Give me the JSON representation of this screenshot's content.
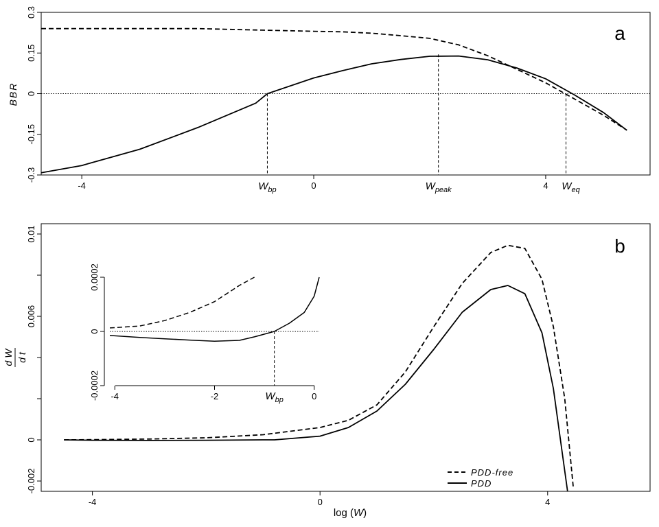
{
  "chart_data": [
    {
      "type": "line",
      "panel_label": "a",
      "ylabel": "BBR",
      "xlabel": "",
      "xlim": [
        -4.7,
        5.8
      ],
      "ylim": [
        -0.3,
        0.3
      ],
      "xticks": [
        -4,
        0,
        4
      ],
      "yticks": [
        -0.3,
        -0.15,
        0,
        0.15,
        0.3
      ],
      "xtick_labels": [
        "-4",
        "0",
        "4"
      ],
      "ytick_labels": [
        "-0.3",
        "-0.15",
        "0",
        "0.15",
        "0.3"
      ],
      "reference_line": {
        "y": 0,
        "style": "dotted"
      },
      "markers": [
        {
          "label": "W",
          "sub": "bp",
          "x": -0.8,
          "y": 0.0
        },
        {
          "label": "W",
          "sub": "peak",
          "x": 2.15,
          "y": 0.145
        },
        {
          "label": "W",
          "sub": "eq",
          "x": 4.35,
          "y": 0.0
        }
      ],
      "series": [
        {
          "style": "dashed",
          "x": [
            -4.7,
            -4,
            -3,
            -2,
            -1,
            0,
            0.5,
            1,
            1.5,
            2,
            2.5,
            3,
            3.5,
            4,
            4.5,
            5,
            5.4
          ],
          "y": [
            0.24,
            0.24,
            0.24,
            0.24,
            0.235,
            0.23,
            0.228,
            0.223,
            0.214,
            0.204,
            0.18,
            0.14,
            0.09,
            0.04,
            -0.02,
            -0.08,
            -0.135
          ]
        },
        {
          "style": "solid",
          "x": [
            -4.7,
            -4,
            -3,
            -2,
            -1,
            -0.8,
            0,
            0.5,
            1,
            1.5,
            2,
            2.5,
            3,
            3.5,
            4,
            4.5,
            5,
            5.4
          ],
          "y": [
            -0.292,
            -0.265,
            -0.205,
            -0.125,
            -0.035,
            0.0,
            0.058,
            0.085,
            0.11,
            0.126,
            0.138,
            0.139,
            0.125,
            0.095,
            0.055,
            -0.005,
            -0.07,
            -0.135
          ]
        }
      ]
    },
    {
      "type": "line",
      "panel_label": "b",
      "ylabel": "dW/dt",
      "xlabel": "log (W)",
      "xlim": [
        -4.9,
        5.8
      ],
      "ylim": [
        -0.0025,
        0.0105
      ],
      "xticks": [
        -4,
        0,
        4
      ],
      "yticks": [
        -0.002,
        0,
        0.002,
        0.004,
        0.006,
        0.008,
        0.01
      ],
      "xtick_labels": [
        "-4",
        "0",
        "4"
      ],
      "ytick_labels": [
        "-0.002",
        "0",
        "",
        "",
        "0.006",
        "",
        "0.01"
      ],
      "legend": {
        "position": "bottom-right",
        "entries": [
          {
            "label": "PDD-free",
            "style": "dashed"
          },
          {
            "label": "PDD",
            "style": "solid"
          }
        ]
      },
      "series": [
        {
          "name": "PDD-free",
          "style": "dashed",
          "x": [
            -4.5,
            -4,
            -3,
            -2,
            -1,
            0,
            0.5,
            1,
            1.5,
            2,
            2.5,
            3,
            3.3,
            3.6,
            3.9,
            4.1,
            4.3,
            4.45
          ],
          "y": [
            0.0,
            1e-05,
            4e-05,
            0.0001,
            0.00025,
            0.0006,
            0.00095,
            0.0017,
            0.0033,
            0.0055,
            0.0076,
            0.0091,
            0.00945,
            0.0093,
            0.0078,
            0.0055,
            0.002,
            -0.0023
          ]
        },
        {
          "name": "PDD",
          "style": "solid",
          "x": [
            -4.5,
            -4,
            -3,
            -2,
            -1,
            -0.8,
            0,
            0.5,
            1,
            1.5,
            2,
            2.5,
            3,
            3.3,
            3.6,
            3.9,
            4.1,
            4.25,
            4.35
          ],
          "y": [
            0.0,
            -2e-05,
            -3e-05,
            -2e-05,
            0.0,
            0.0,
            0.00018,
            0.0006,
            0.0014,
            0.0027,
            0.0044,
            0.0062,
            0.0073,
            0.0075,
            0.0071,
            0.0052,
            0.0025,
            -0.0005,
            -0.0025
          ]
        }
      ]
    },
    {
      "type": "line",
      "panel_label": "",
      "inset_of": "b",
      "xlim": [
        -4.1,
        0.1
      ],
      "ylim": [
        -0.0002,
        0.0002
      ],
      "xticks": [
        -4,
        -2,
        0
      ],
      "yticks": [
        -0.0002,
        0,
        0.0002
      ],
      "xtick_labels": [
        "-4",
        "-2",
        "0"
      ],
      "ytick_labels": [
        "-0.0002",
        "0",
        "0.0002"
      ],
      "reference_line": {
        "y": 0,
        "style": "dotted"
      },
      "markers": [
        {
          "label": "W",
          "sub": "bp",
          "x": -0.8,
          "y": 0.0
        }
      ],
      "series": [
        {
          "style": "dashed",
          "x": [
            -4.1,
            -3.5,
            -3,
            -2.5,
            -2,
            -1.5,
            -1.2
          ],
          "y": [
            1.3e-05,
            2e-05,
            4e-05,
            7e-05,
            0.00011,
            0.00017,
            0.0002
          ]
        },
        {
          "style": "solid",
          "x": [
            -4.1,
            -3.5,
            -3,
            -2.5,
            -2,
            -1.5,
            -1.2,
            -0.8,
            -0.5,
            -0.2,
            0.0,
            0.1
          ],
          "y": [
            -1.5e-05,
            -2.2e-05,
            -2.7e-05,
            -3.2e-05,
            -3.6e-05,
            -3.3e-05,
            -2e-05,
            0.0,
            3e-05,
            7e-05,
            0.00013,
            0.0002
          ]
        }
      ]
    }
  ]
}
